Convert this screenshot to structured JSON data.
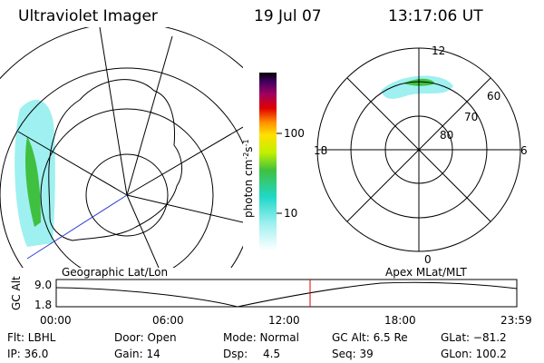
{
  "header": {
    "title": "Ultraviolet Imager",
    "date": "19 Jul 07",
    "time": "13:17:06 UT"
  },
  "colorbar": {
    "label": "photon cm",
    "exp1": "-2",
    "unit2": "s",
    "exp2": "-1",
    "ticks": [
      "100",
      "10"
    ]
  },
  "polar": {
    "mlt_labels": [
      "12",
      "18",
      "6",
      "0"
    ],
    "lat_labels": [
      "60",
      "70",
      "80"
    ]
  },
  "panels": {
    "left": "Geographic Lat/Lon",
    "right": "Apex MLat/MLT"
  },
  "timeplot": {
    "axis_label": "GC Alt",
    "y_labels": [
      "9.0",
      "1.8"
    ],
    "x_labels": [
      "00:00",
      "06:00",
      "12:00",
      "18:00",
      "23:59"
    ]
  },
  "footer": {
    "col1": [
      "Flt: LBHL",
      "IP: 36.0"
    ],
    "col2": [
      "Door: Open",
      "Gain: 14"
    ],
    "col3": [
      "Mode: Normal",
      "Dsp:"
    ],
    "dsp_value": "4.5",
    "col4": [
      "GC Alt: 6.5 Re",
      "Seq: 39"
    ],
    "col5": [
      "GLat: −81.2",
      "GLon: 100.2"
    ]
  }
}
